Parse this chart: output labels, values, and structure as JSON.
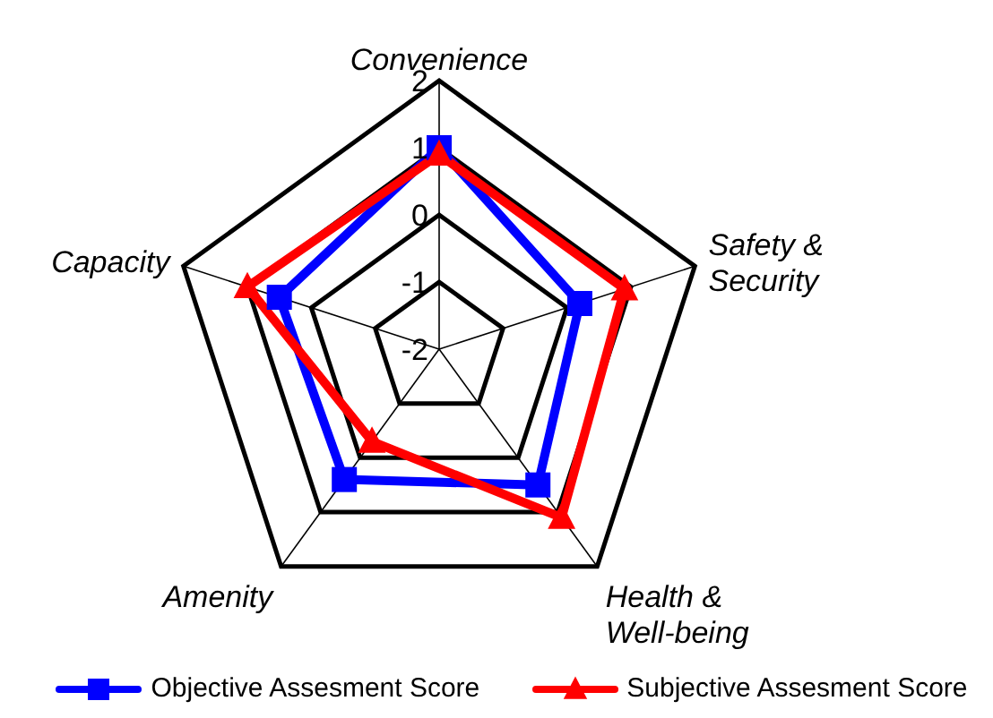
{
  "chart_data": {
    "type": "radar",
    "categories": [
      "Convenience",
      "Safety & Security",
      "Health & Well-being",
      "Amenity",
      "Capacity"
    ],
    "ylim": [
      -2,
      2
    ],
    "yticks": [
      -2,
      -1,
      0,
      1,
      2
    ],
    "grid": true,
    "legend": "bottom",
    "series": [
      {
        "name": "Objective Assesment Score",
        "color": "#0000ff",
        "marker": "square",
        "values": [
          1.0,
          0.2,
          0.5,
          0.4,
          0.5
        ]
      },
      {
        "name": "Subjective Assesment Score",
        "color": "#ff0000",
        "marker": "triangle",
        "values": [
          0.9,
          0.9,
          1.1,
          -0.3,
          1.0
        ]
      }
    ]
  }
}
